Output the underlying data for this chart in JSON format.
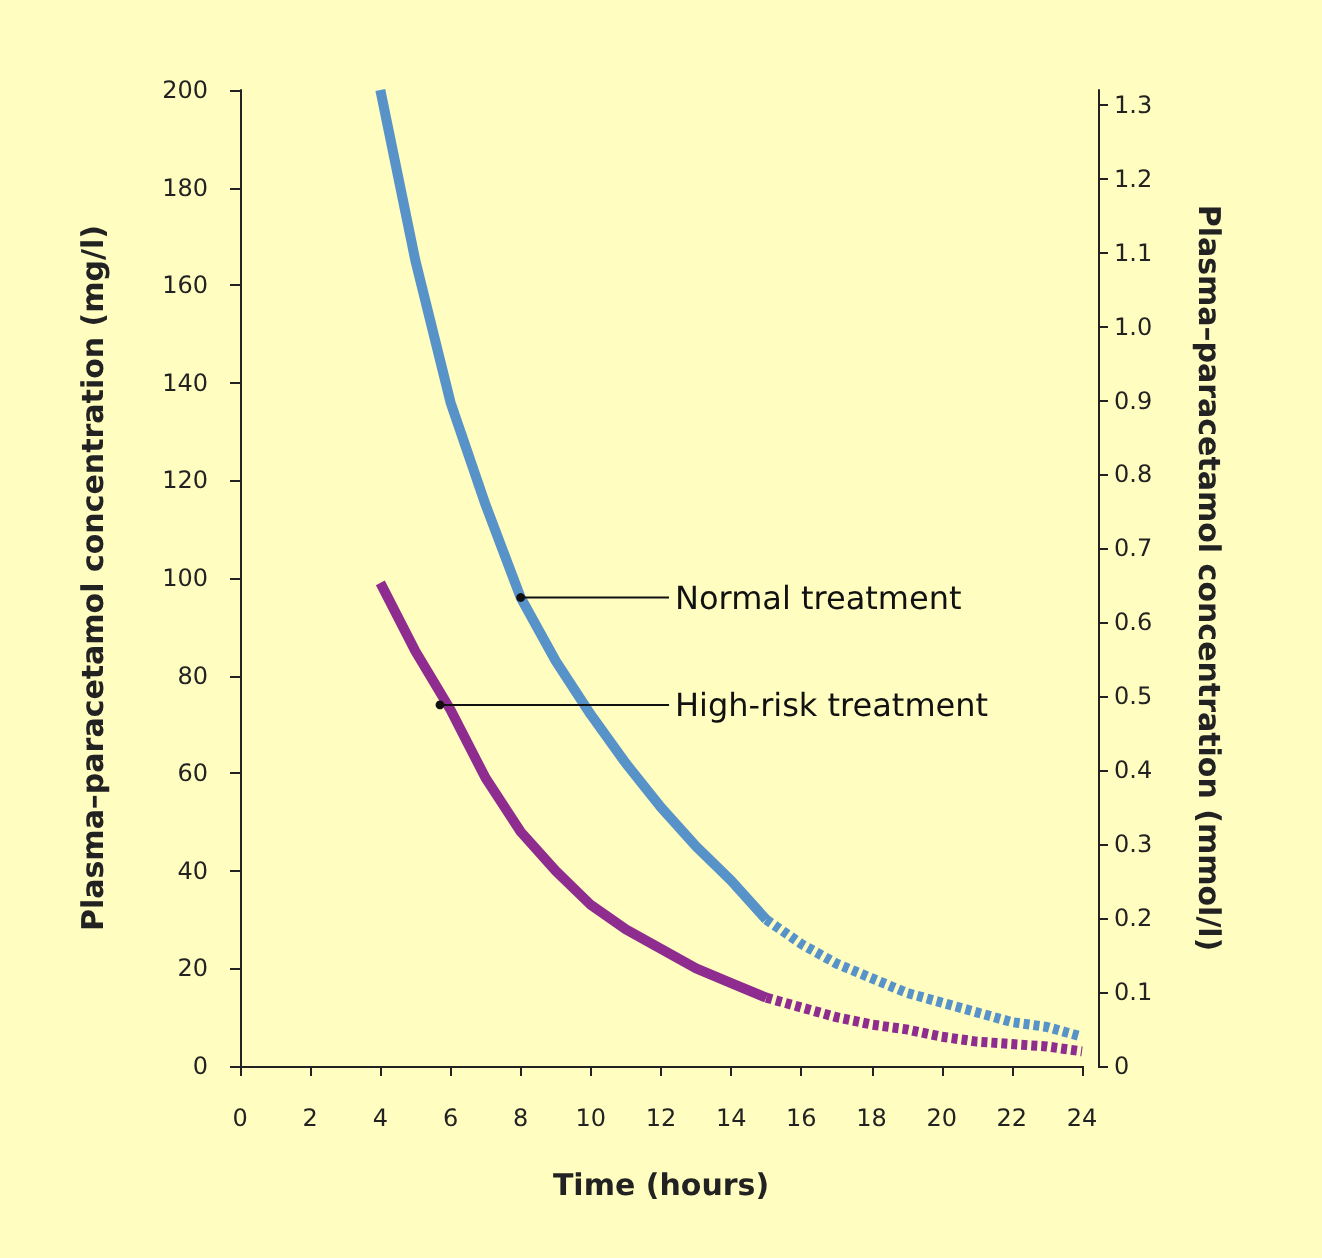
{
  "chart_data": {
    "type": "line",
    "xlabel": "Time (hours)",
    "ylabel": "Plasma–paracetamol concentration (mg/l)",
    "y2label": "Plasma–paracetamol concentration (mmol/l)",
    "xlim": [
      0,
      24
    ],
    "xticks": [
      0,
      2,
      4,
      6,
      8,
      10,
      12,
      14,
      16,
      18,
      20,
      22,
      24
    ],
    "ylim": [
      0,
      200
    ],
    "yticks": [
      0,
      20,
      40,
      60,
      80,
      100,
      120,
      140,
      160,
      180,
      200
    ],
    "y2lim": [
      0,
      1.32
    ],
    "y2ticks": [
      0,
      0.1,
      0.2,
      0.3,
      0.4,
      0.5,
      0.6,
      0.7,
      0.8,
      0.9,
      {
        "value": 1,
        "label": "1.0"
      },
      1.1,
      1.2,
      1.3
    ],
    "marker": "none",
    "series": [
      {
        "color": "#5792c9",
        "line_style": "solid",
        "x": [
          4,
          5,
          6,
          7,
          8,
          9,
          10,
          11,
          12,
          13,
          14,
          15
        ],
        "values": [
          200,
          165,
          136,
          115,
          96,
          83,
          72,
          62,
          53,
          45,
          38,
          30
        ]
      },
      {
        "color": "#5792c9",
        "line_style": "dashed",
        "x": [
          15,
          16,
          17,
          18,
          19,
          20,
          21,
          22,
          23,
          24
        ],
        "values": [
          30,
          25,
          21,
          18,
          15,
          13,
          11,
          9,
          8,
          6
        ]
      },
      {
        "color": "#8e2c8f",
        "line_style": "solid",
        "x": [
          4,
          5,
          6,
          7,
          8,
          9,
          10,
          11,
          12,
          13,
          14,
          15
        ],
        "values": [
          99,
          85,
          73,
          59,
          48,
          40,
          33,
          28,
          24,
          20,
          17,
          14
        ]
      },
      {
        "color": "#8e2c8f",
        "line_style": "dashed",
        "x": [
          15,
          16,
          17,
          18,
          19,
          20,
          21,
          22,
          23,
          24
        ],
        "values": [
          14,
          12,
          10,
          8.5,
          7.5,
          6,
          5,
          4.5,
          4,
          3
        ]
      }
    ],
    "annotations": [
      {
        "text": "Normal treatment",
        "x": 8,
        "y": 96
      },
      {
        "text": "High-risk treatment",
        "x": 5.7,
        "y": 74
      }
    ]
  }
}
